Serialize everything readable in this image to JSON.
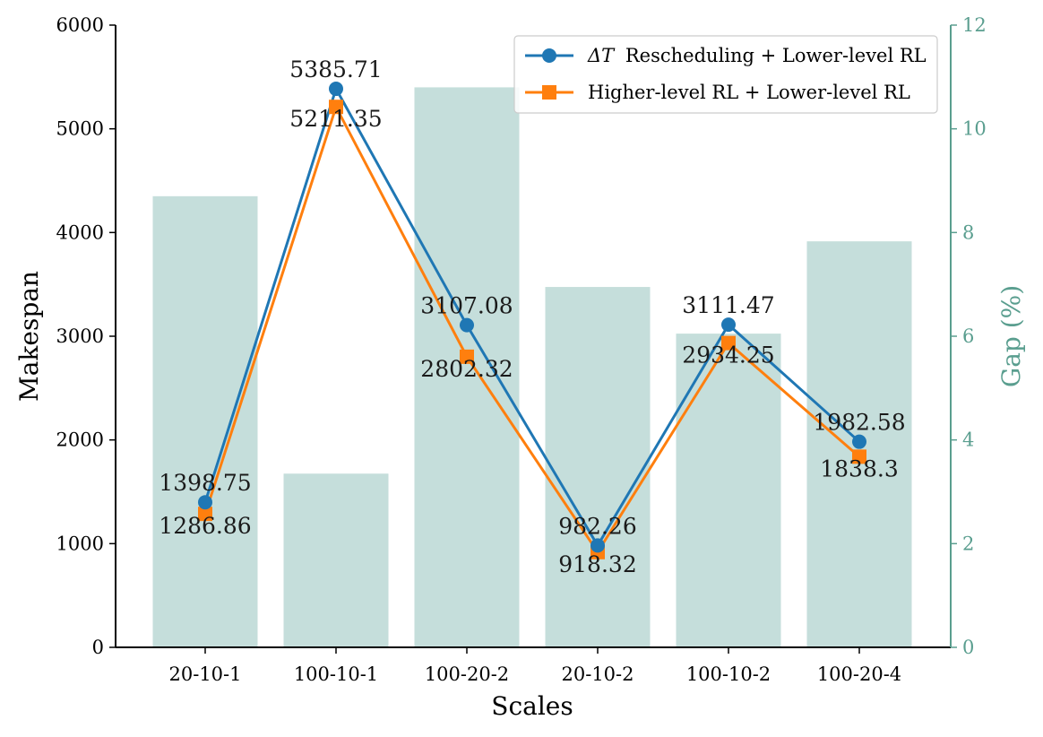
{
  "chart_data": {
    "type": "bar+line",
    "xlabel": "Scales",
    "ylabel_left": "Makespan",
    "ylabel_right": "Gap (%)",
    "categories": [
      "20-10-1",
      "100-10-1",
      "100-20-2",
      "20-10-2",
      "100-10-2",
      "100-20-4"
    ],
    "ylim_left": [
      0,
      6000
    ],
    "ylim_right": [
      0,
      12
    ],
    "yticks_left": [
      0,
      1000,
      2000,
      3000,
      4000,
      5000,
      6000
    ],
    "yticks_right": [
      0,
      2,
      4,
      6,
      8,
      10,
      12
    ],
    "bars": {
      "name": "Gap (%)",
      "color": "#c5dedb",
      "values": [
        8.7,
        3.35,
        10.8,
        6.95,
        6.05,
        7.83
      ]
    },
    "series": [
      {
        "name_prefix": "ΔT",
        "name": "Rescheduling + Lower-level RL",
        "color": "#1f77b4",
        "marker": "circle",
        "values": [
          1398.75,
          5385.71,
          3107.08,
          982.26,
          3111.47,
          1982.58
        ],
        "labels": [
          "1398.75",
          "5385.71",
          "3107.08",
          "982.26",
          "3111.47",
          "1982.58"
        ]
      },
      {
        "name": "Higher-level RL + Lower-level RL",
        "color": "#ff7f0e",
        "marker": "square",
        "values": [
          1286.86,
          5211.35,
          2802.32,
          918.32,
          2934.25,
          1838.3
        ],
        "labels": [
          "1286.86",
          "5211.35",
          "2802.32",
          "918.32",
          "2934.25",
          "1838.3"
        ]
      }
    ],
    "legend": "top-right",
    "grid": false
  }
}
